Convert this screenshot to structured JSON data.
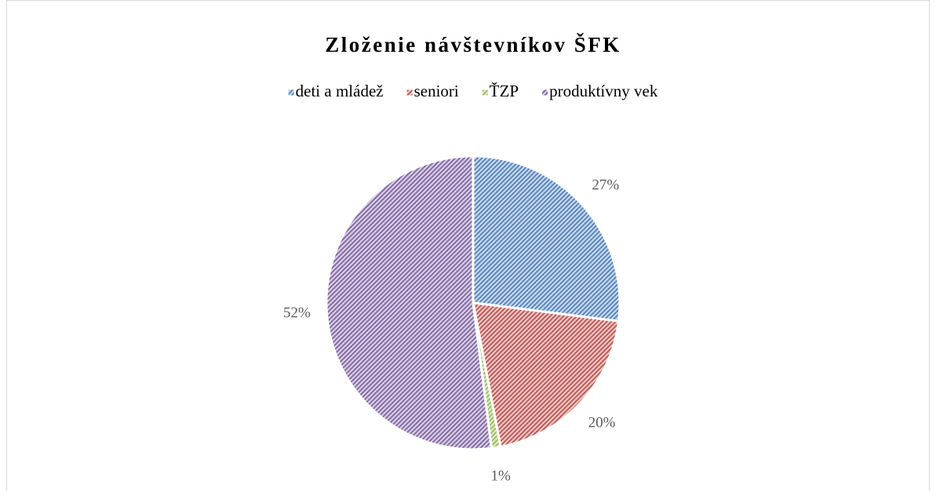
{
  "chart_data": {
    "type": "pie",
    "title": "Zloženie návštevníkov ŠFK",
    "categories": [
      "deti a mládež",
      "seniori",
      "ŤZP",
      "produktívny vek"
    ],
    "values": [
      27,
      20,
      1,
      52
    ],
    "value_labels": [
      "27%",
      "20%",
      "1%",
      "52%"
    ],
    "colors": [
      "#4f81bd",
      "#c0504d",
      "#9bbb59",
      "#8064a2"
    ],
    "legend": "top"
  }
}
